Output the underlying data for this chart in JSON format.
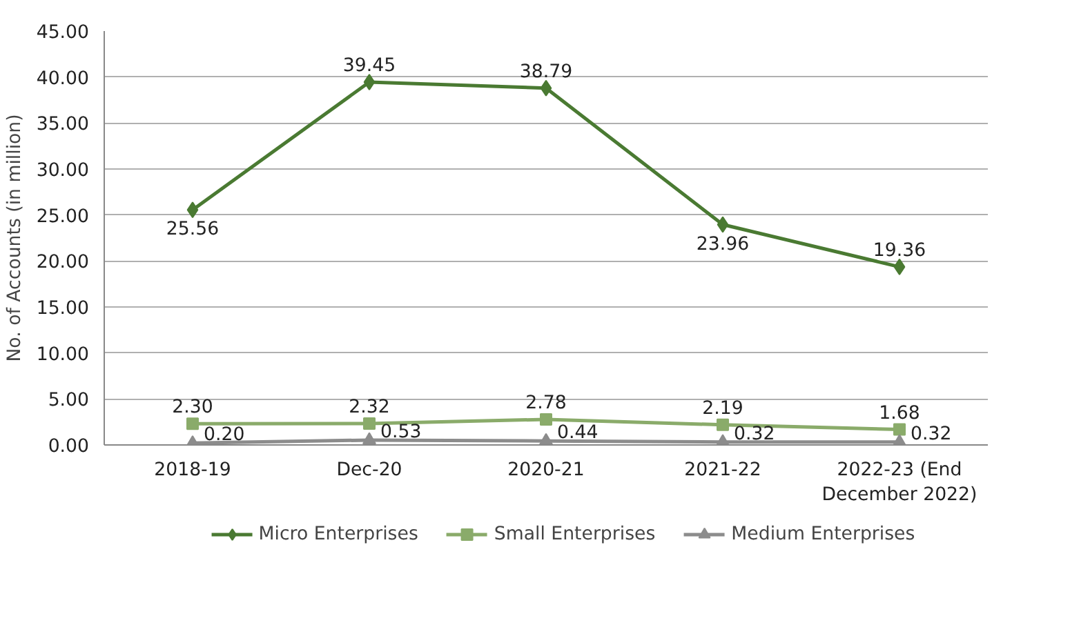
{
  "chart_data": {
    "type": "line",
    "ylabel": "No. of Accounts (in million)",
    "categories": [
      "2018-19",
      "Dec-20",
      "2020-21",
      "2021-22",
      "2022-23 (End December 2022)"
    ],
    "ylim": [
      0,
      45
    ],
    "yticks": [
      {
        "value": 0,
        "label": "0.00"
      },
      {
        "value": 5,
        "label": "5.00"
      },
      {
        "value": 10,
        "label": "10.00"
      },
      {
        "value": 15,
        "label": "15.00"
      },
      {
        "value": 20,
        "label": "20.00"
      },
      {
        "value": 25,
        "label": "25.00"
      },
      {
        "value": 30,
        "label": "30.00"
      },
      {
        "value": 35,
        "label": "35.00"
      },
      {
        "value": 40,
        "label": "40.00"
      },
      {
        "value": 45,
        "label": "45.00"
      }
    ],
    "grid": "y",
    "legend": "bottom",
    "series": [
      {
        "name": "Micro Enterprises",
        "color": "#4a7a32",
        "marker": "diamond",
        "values": [
          25.56,
          39.45,
          38.79,
          23.96,
          19.36
        ],
        "value_labels": [
          "25.56",
          "39.45",
          "38.79",
          "23.96",
          "19.36"
        ]
      },
      {
        "name": "Small Enterprises",
        "color": "#8aab6a",
        "marker": "square",
        "values": [
          2.3,
          2.32,
          2.78,
          2.19,
          1.68
        ],
        "value_labels": [
          "2.30",
          "2.32",
          "2.78",
          "2.19",
          "1.68"
        ]
      },
      {
        "name": "Medium Enterprises",
        "color": "#8c8c8c",
        "marker": "triangle",
        "values": [
          0.2,
          0.53,
          0.44,
          0.32,
          0.32
        ],
        "value_labels": [
          "0.20",
          "0.53",
          "0.44",
          "0.32",
          "0.32"
        ]
      }
    ]
  }
}
